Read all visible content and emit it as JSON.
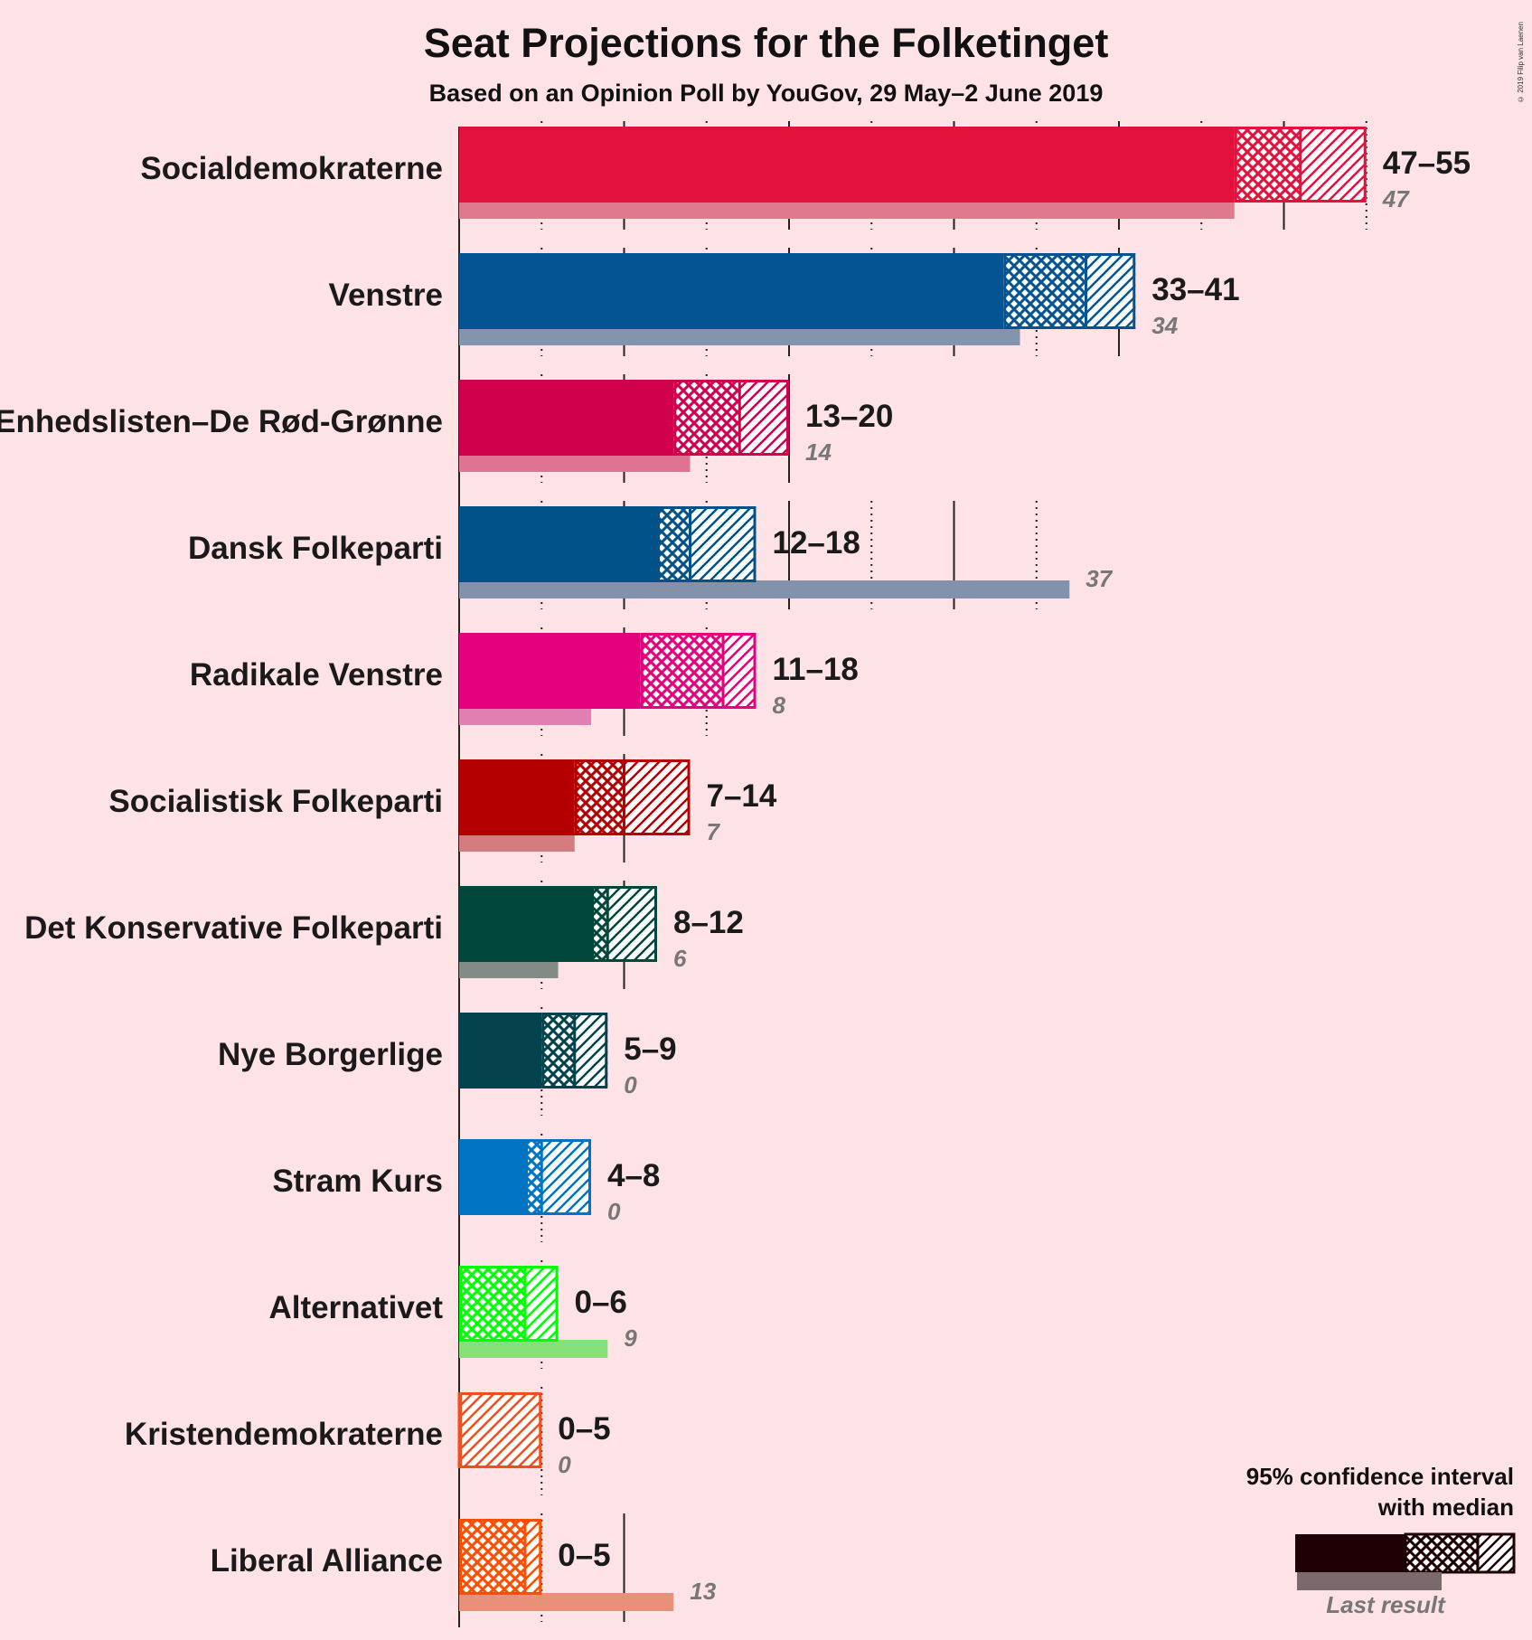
{
  "title": "Seat Projections for the Folketinget",
  "subtitle": "Based on an Opinion Poll by YouGov, 29 May–2 June 2019",
  "copyright": "© 2019 Filip van Laenen",
  "legend": {
    "line1": "95% confidence interval",
    "line2": "with median",
    "last_result": "Last result"
  },
  "chart_data": {
    "type": "bar",
    "orientation": "horizontal",
    "title": "Seat Projections for the Folketinget",
    "subtitle": "Based on an Opinion Poll by YouGov, 29 May–2 June 2019",
    "xlim": [
      0,
      56
    ],
    "gridlines_every": 5,
    "parties": [
      {
        "name": "Socialdemokraterne",
        "low": 47,
        "median": 51,
        "high": 55,
        "last": 47,
        "range_label": "47–55",
        "last_label": "47",
        "color": "#e3123d",
        "last_color": "#df7a8e"
      },
      {
        "name": "Venstre",
        "low": 33,
        "median": 38,
        "high": 41,
        "last": 34,
        "range_label": "33–41",
        "last_label": "34",
        "color": "#045494",
        "last_color": "#8394ad"
      },
      {
        "name": "Enhedslisten–De Rød-Grønne",
        "low": 13,
        "median": 17,
        "high": 20,
        "last": 14,
        "range_label": "13–20",
        "last_label": "14",
        "color": "#d0004d",
        "last_color": "#df7392"
      },
      {
        "name": "Dansk Folkeparti",
        "low": 12,
        "median": 14,
        "high": 18,
        "last": 37,
        "range_label": "12–18",
        "last_label": "37",
        "color": "#005289",
        "last_color": "#8292ab"
      },
      {
        "name": "Radikale Venstre",
        "low": 11,
        "median": 16,
        "high": 18,
        "last": 8,
        "range_label": "11–18",
        "last_label": "8",
        "color": "#e5007d",
        "last_color": "#e17fb2"
      },
      {
        "name": "Socialistisk Folkeparti",
        "low": 7,
        "median": 10,
        "high": 14,
        "last": 7,
        "range_label": "7–14",
        "last_label": "7",
        "color": "#b40000",
        "last_color": "#d47b80"
      },
      {
        "name": "Det Konservative Folkeparti",
        "low": 8,
        "median": 9,
        "high": 12,
        "last": 6,
        "range_label": "8–12",
        "last_label": "6",
        "color": "#02473c",
        "last_color": "#838b87"
      },
      {
        "name": "Nye Borgerlige",
        "low": 5,
        "median": 7,
        "high": 9,
        "last": 0,
        "range_label": "5–9",
        "last_label": "0",
        "color": "#02434e",
        "last_color": "#838b8f"
      },
      {
        "name": "Stram Kurs",
        "low": 4,
        "median": 5,
        "high": 8,
        "last": 0,
        "range_label": "4–8",
        "last_label": "0",
        "color": "#0073c2",
        "last_color": "#7fa8d0"
      },
      {
        "name": "Alternativet",
        "low": 0,
        "median": 4,
        "high": 6,
        "last": 9,
        "range_label": "0–6",
        "last_label": "9",
        "color": "#00ff00",
        "last_color": "#86e07a"
      },
      {
        "name": "Kristendemokraterne",
        "low": 0,
        "median": 0,
        "high": 5,
        "last": 0,
        "range_label": "0–5",
        "last_label": "0",
        "color": "#f04e1e",
        "last_color": "#e88e79"
      },
      {
        "name": "Liberal Alliance",
        "low": 0,
        "median": 4,
        "high": 5,
        "last": 13,
        "range_label": "0–5",
        "last_label": "13",
        "color": "#ff4d00",
        "last_color": "#e89078"
      }
    ]
  }
}
